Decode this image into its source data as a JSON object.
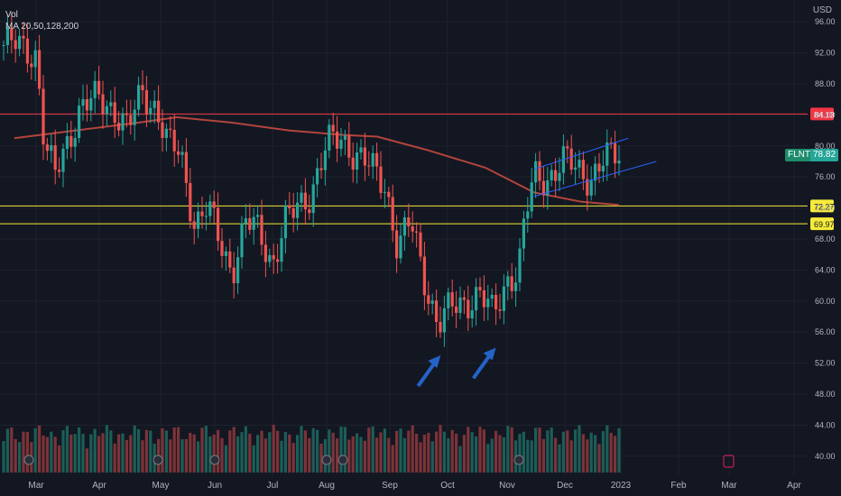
{
  "header": {
    "currency": "USD",
    "volume_label": "Vol",
    "ma_label": "MA 20,50,128,200"
  },
  "chart_data": {
    "type": "candlestick",
    "symbol": "FLNT",
    "last_price": "78.82",
    "currency": "USD",
    "y_ticks": [
      "96.00",
      "92.00",
      "88.00",
      "84.00",
      "80.00",
      "76.00",
      "72.00",
      "68.00",
      "64.00",
      "60.00",
      "56.00",
      "52.00",
      "48.00",
      "44.00",
      "40.00"
    ],
    "x_ticks": [
      "Mar",
      "Apr",
      "May",
      "Jun",
      "Jul",
      "Aug",
      "Sep",
      "Oct",
      "Nov",
      "Dec",
      "2023",
      "Feb",
      "Mar",
      "Apr"
    ],
    "horizontal_levels": [
      {
        "value": 84.13,
        "label": "84.13",
        "color": "#f23645"
      },
      {
        "value": 72.27,
        "label": "72.27",
        "color": "#f5eb3a"
      },
      {
        "value": 69.97,
        "label": "69.97",
        "color": "#f5eb3a"
      }
    ],
    "price_path": [
      {
        "date": "Feb 20",
        "close": 93
      },
      {
        "date": "Mar 1",
        "close": 92
      },
      {
        "date": "Mar 5",
        "close": 80
      },
      {
        "date": "Mar 10",
        "close": 76
      },
      {
        "date": "Mar 15",
        "close": 80
      },
      {
        "date": "Mar 22",
        "close": 85
      },
      {
        "date": "Apr 1",
        "close": 86
      },
      {
        "date": "Apr 8",
        "close": 85
      },
      {
        "date": "Apr 15",
        "close": 82
      },
      {
        "date": "Apr 22",
        "close": 87
      },
      {
        "date": "Apr 29",
        "close": 85
      },
      {
        "date": "May 5",
        "close": 80
      },
      {
        "date": "May 12",
        "close": 79
      },
      {
        "date": "May 20",
        "close": 70
      },
      {
        "date": "May 27",
        "close": 72
      },
      {
        "date": "Jun 3",
        "close": 68
      },
      {
        "date": "Jun 10",
        "close": 64
      },
      {
        "date": "Jun 17",
        "close": 70
      },
      {
        "date": "Jun 24",
        "close": 69
      },
      {
        "date": "Jul 1",
        "close": 65
      },
      {
        "date": "Jul 8",
        "close": 70
      },
      {
        "date": "Jul 15",
        "close": 72
      },
      {
        "date": "Jul 22",
        "close": 74
      },
      {
        "date": "Aug 1",
        "close": 80
      },
      {
        "date": "Aug 8",
        "close": 81
      },
      {
        "date": "Aug 15",
        "close": 79
      },
      {
        "date": "Aug 22",
        "close": 77
      },
      {
        "date": "Aug 29",
        "close": 75
      },
      {
        "date": "Sep 5",
        "close": 67
      },
      {
        "date": "Sep 12",
        "close": 70
      },
      {
        "date": "Sep 19",
        "close": 63
      },
      {
        "date": "Sep 26",
        "close": 57
      },
      {
        "date": "Oct 3",
        "close": 59
      },
      {
        "date": "Oct 10",
        "close": 60
      },
      {
        "date": "Oct 17",
        "close": 61
      },
      {
        "date": "Oct 24",
        "close": 58
      },
      {
        "date": "Oct 31",
        "close": 63
      },
      {
        "date": "Nov 7",
        "close": 64
      },
      {
        "date": "Nov 10",
        "close": 70
      },
      {
        "date": "Nov 15",
        "close": 76
      },
      {
        "date": "Nov 22",
        "close": 76
      },
      {
        "date": "Dec 1",
        "close": 78
      },
      {
        "date": "Dec 8",
        "close": 77
      },
      {
        "date": "Dec 15",
        "close": 76
      },
      {
        "date": "Dec 22",
        "close": 78
      },
      {
        "date": "Dec 30",
        "close": 79
      }
    ],
    "ma_200": [
      {
        "date": "Feb 20",
        "value": 81
      },
      {
        "date": "Mar 20",
        "value": 82
      },
      {
        "date": "Apr 20",
        "value": 83
      },
      {
        "date": "May 10",
        "value": 83.7
      },
      {
        "date": "Jun 10",
        "value": 83
      },
      {
        "date": "Jul 10",
        "value": 82
      },
      {
        "date": "Aug 10",
        "value": 81.4
      },
      {
        "date": "Aug 25",
        "value": 81.2
      },
      {
        "date": "Sep 20",
        "value": 79.5
      },
      {
        "date": "Oct 20",
        "value": 77.2
      },
      {
        "date": "Nov 15",
        "value": 74
      },
      {
        "date": "Dec 10",
        "value": 72.8
      },
      {
        "date": "Dec 30",
        "value": 72.4
      }
    ],
    "channel": {
      "upper": [
        {
          "date": "Nov 15",
          "value": 77
        },
        {
          "date": "Jan 5",
          "value": 81
        }
      ],
      "lower": [
        {
          "date": "Nov 15",
          "value": 73.5
        },
        {
          "date": "Jan 20",
          "value": 78
        }
      ]
    },
    "colors": {
      "up": "#26a69a",
      "down": "#ef5350",
      "ma": "#b2443d",
      "channel": "#2962ff",
      "arrow": "#2463c8"
    },
    "annotations": [
      {
        "type": "arrow",
        "date": "Sep 26",
        "value": 53,
        "color": "#2463c8"
      },
      {
        "type": "arrow",
        "date": "Oct 24",
        "value": 54,
        "color": "#2463c8"
      }
    ]
  }
}
